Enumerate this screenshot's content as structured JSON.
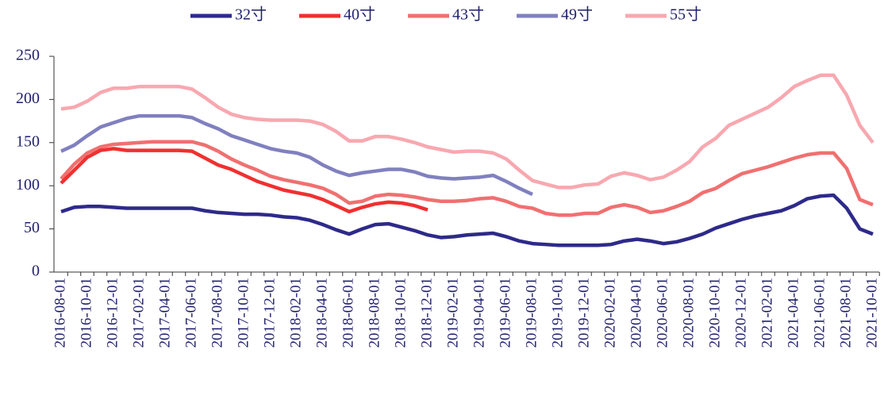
{
  "chart_data": {
    "type": "line",
    "categories": [
      "2016-08-01",
      null,
      "2016-10-01",
      null,
      "2016-12-01",
      null,
      "2017-02-01",
      null,
      "2017-04-01",
      null,
      "2017-06-01",
      null,
      "2017-08-01",
      null,
      "2017-10-01",
      null,
      "2017-12-01",
      null,
      "2018-02-01",
      null,
      "2018-04-01",
      null,
      "2018-06-01",
      null,
      "2018-08-01",
      null,
      "2018-10-01",
      null,
      "2018-12-01",
      null,
      "2019-02-01",
      null,
      "2019-04-01",
      null,
      "2019-06-01",
      null,
      "2019-08-01",
      null,
      "2019-10-01",
      null,
      "2019-12-01",
      null,
      "2020-02-01",
      null,
      "2020-04-01",
      null,
      "2020-06-01",
      null,
      "2020-08-01",
      null,
      "2020-10-01",
      null,
      "2020-12-01",
      null,
      "2021-02-01",
      null,
      "2021-04-01",
      null,
      "2021-06-01",
      null,
      "2021-08-01",
      null,
      "2021-10-01"
    ],
    "series": [
      {
        "name": "32寸",
        "color": "#2e2a8a",
        "values": [
          70,
          75,
          76,
          76,
          75,
          74,
          74,
          74,
          74,
          74,
          74,
          71,
          69,
          68,
          67,
          67,
          66,
          64,
          63,
          60,
          55,
          49,
          44,
          50,
          55,
          56,
          52,
          48,
          43,
          40,
          41,
          43,
          44,
          45,
          41,
          36,
          33,
          32,
          31,
          31,
          31,
          31,
          32,
          36,
          38,
          36,
          33,
          35,
          39,
          44,
          51,
          56,
          61,
          65,
          68,
          71,
          77,
          85,
          88,
          89,
          74,
          50,
          44
        ]
      },
      {
        "name": "40寸",
        "color": "#f03030",
        "values": [
          103,
          118,
          133,
          141,
          143,
          141,
          141,
          141,
          141,
          141,
          140,
          132,
          124,
          119,
          112,
          105,
          100,
          95,
          92,
          89,
          84,
          77,
          70,
          75,
          79,
          81,
          80,
          77,
          72,
          null,
          null,
          null,
          null,
          null,
          null,
          null,
          null,
          null,
          null,
          null,
          null,
          null,
          null,
          null,
          null,
          null,
          null,
          null,
          null,
          null,
          null,
          null,
          null,
          null,
          null,
          null,
          null,
          null,
          null,
          null,
          null,
          null,
          null
        ]
      },
      {
        "name": "43寸",
        "color": "#f07070",
        "values": [
          108,
          125,
          138,
          145,
          148,
          149,
          150,
          151,
          151,
          151,
          151,
          147,
          140,
          131,
          124,
          118,
          111,
          107,
          104,
          101,
          97,
          90,
          80,
          82,
          88,
          90,
          89,
          87,
          84,
          82,
          82,
          83,
          85,
          86,
          82,
          76,
          74,
          68,
          66,
          66,
          68,
          68,
          75,
          78,
          75,
          69,
          71,
          76,
          82,
          92,
          97,
          106,
          114,
          118,
          122,
          127,
          132,
          136,
          138,
          138,
          120,
          84,
          78
        ]
      },
      {
        "name": "49寸",
        "color": "#8080c0",
        "values": [
          140,
          147,
          158,
          168,
          173,
          178,
          181,
          181,
          181,
          181,
          179,
          172,
          166,
          158,
          153,
          148,
          143,
          140,
          138,
          133,
          124,
          117,
          112,
          115,
          117,
          119,
          119,
          116,
          111,
          109,
          108,
          109,
          110,
          112,
          105,
          97,
          90,
          null,
          null,
          null,
          null,
          null,
          null,
          null,
          null,
          null,
          null,
          null,
          null,
          null,
          null,
          null,
          null,
          null,
          null,
          null,
          null,
          null,
          null,
          null,
          null,
          null,
          null
        ]
      },
      {
        "name": "55寸",
        "color": "#f8a8b0",
        "values": [
          189,
          191,
          198,
          208,
          213,
          213,
          215,
          215,
          215,
          215,
          212,
          202,
          191,
          183,
          179,
          177,
          176,
          176,
          176,
          175,
          171,
          163,
          152,
          152,
          157,
          157,
          154,
          150,
          145,
          142,
          139,
          140,
          140,
          138,
          131,
          118,
          106,
          102,
          98,
          98,
          101,
          102,
          111,
          115,
          112,
          107,
          110,
          118,
          128,
          145,
          155,
          170,
          177,
          184,
          191,
          202,
          215,
          222,
          228,
          228,
          205,
          170,
          150
        ]
      }
    ],
    "ylim": [
      0,
      250
    ],
    "yticks": [
      0,
      50,
      100,
      150,
      200,
      250
    ],
    "legend": "top"
  }
}
